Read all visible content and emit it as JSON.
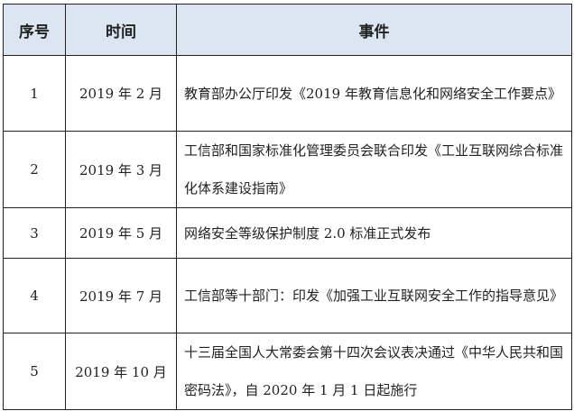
{
  "table": {
    "headers": [
      "序号",
      "时间",
      "事件"
    ],
    "rows": [
      {
        "no": "1",
        "time": "2019 年 2 月",
        "event": "教育部办公厅印发《2019 年教育信息化和网络安全工作要点》"
      },
      {
        "no": "2",
        "time": "2019 年 3 月",
        "event": "工信部和国家标准化管理委员会联合印发《工业互联网综合标准化体系建设指南》"
      },
      {
        "no": "3",
        "time": "2019 年 5 月",
        "event": "网络安全等级保护制度 2.0 标准正式发布"
      },
      {
        "no": "4",
        "time": "2019 年 7 月",
        "event": "工信部等十部门：印发《加强工业互联网安全工作的指导意见》"
      },
      {
        "no": "5",
        "time": "2019 年 10 月",
        "event": "十三届全国人大常委会第十四次会议表决通过《中华人民共和国密码法》，自 2020 年 1 月 1 日起施行"
      }
    ]
  }
}
